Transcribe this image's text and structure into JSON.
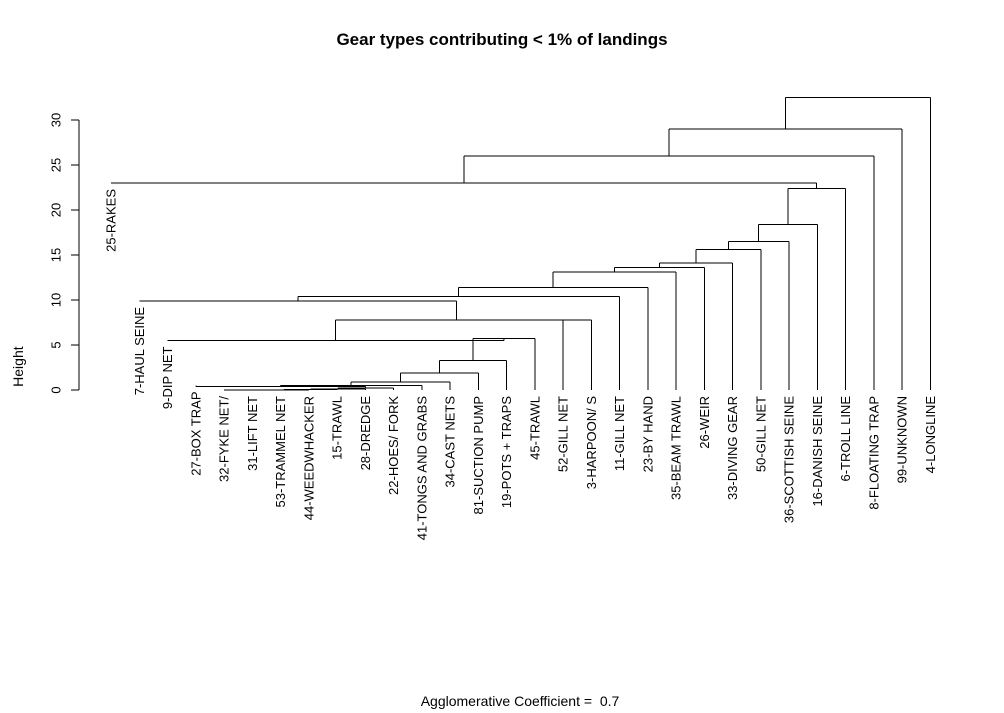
{
  "chart_data": {
    "type": "dendrogram",
    "title": "Gear types contributing < 1% of landings",
    "ylabel": "Height",
    "ylim": [
      0,
      33
    ],
    "yticks": [
      0,
      5,
      10,
      15,
      20,
      25,
      30
    ],
    "footer_label": "Agglomerative Coefficient =",
    "footer_value": "0.7",
    "leaves": [
      {
        "label": "25-RAKES",
        "height": 23.0
      },
      {
        "label": "7-HAUL SEINE",
        "height": 9.9
      },
      {
        "label": "9-DIP NET",
        "height": 5.5
      },
      {
        "label": "27-BOX TRAP",
        "height": 0.5
      },
      {
        "label": "32-FYKE NET/",
        "height": 0.0
      },
      {
        "label": "31-LIFT NET",
        "height": 0.0
      },
      {
        "label": "53-TRAMMEL NET",
        "height": 0.0
      },
      {
        "label": "44-WEEDWHACKER",
        "height": 0.0
      },
      {
        "label": "15-TRAWL",
        "height": 0.0
      },
      {
        "label": "28-DREDGE",
        "height": 0.0
      },
      {
        "label": "22-HOES/ FORK",
        "height": 0.0
      },
      {
        "label": "41-TONGS AND GRABS",
        "height": 0.0
      },
      {
        "label": "34-CAST NETS",
        "height": 0.0
      },
      {
        "label": "81-SUCTION PUMP",
        "height": 0.0
      },
      {
        "label": "19-POTS + TRAPS",
        "height": 0.0
      },
      {
        "label": "45-TRAWL",
        "height": 0.0
      },
      {
        "label": "52-GILL NET",
        "height": 0.0
      },
      {
        "label": "3-HARPOON/ S",
        "height": 0.0
      },
      {
        "label": "11-GILL NET",
        "height": 0.0
      },
      {
        "label": "23-BY HAND",
        "height": 0.0
      },
      {
        "label": "35-BEAM TRAWL",
        "height": 0.0
      },
      {
        "label": "26-WEIR",
        "height": 0.0
      },
      {
        "label": "33-DIVING GEAR",
        "height": 0.0
      },
      {
        "label": "50-GILL NET",
        "height": 0.0
      },
      {
        "label": "36-SCOTTISH SEINE",
        "height": 0.0
      },
      {
        "label": "16-DANISH SEINE",
        "height": 0.0
      },
      {
        "label": "6-TROLL LINE",
        "height": 0.0
      },
      {
        "label": "8-FLOATING TRAP",
        "height": 0.0
      },
      {
        "label": "99-UNKNOWN",
        "height": 0.0
      },
      {
        "label": "4-LONGLINE",
        "height": 0.0
      }
    ],
    "merges": [
      {
        "a": "L5",
        "b": "L6",
        "height": 0.0
      },
      {
        "a": "M1",
        "b": "L7",
        "height": 0.0
      },
      {
        "a": "M2",
        "b": "L8",
        "height": 0.0
      },
      {
        "a": "M3",
        "b": "L9",
        "height": 0.05
      },
      {
        "a": "M4",
        "b": "L10",
        "height": 0.1
      },
      {
        "a": "M5",
        "b": "L11",
        "height": 0.2
      },
      {
        "a": "L4",
        "b": "M6",
        "height": 0.4
      },
      {
        "a": "M7",
        "b": "L12",
        "height": 0.5
      },
      {
        "a": "M8",
        "b": "L13",
        "height": 0.9
      },
      {
        "a": "M9",
        "b": "L14",
        "height": 1.9
      },
      {
        "a": "M10",
        "b": "L15",
        "height": 3.3
      },
      {
        "a": "M11",
        "b": "L16",
        "height": 5.7
      },
      {
        "a": "L3",
        "b": "M12",
        "height": 5.5
      },
      {
        "a": "L17",
        "b": "L18",
        "height": 7.8
      },
      {
        "a": "M13",
        "b": "M14",
        "height": 7.8
      },
      {
        "a": "L2",
        "b": "M15",
        "height": 9.9
      },
      {
        "a": "M16",
        "b": "L19",
        "height": 10.4
      },
      {
        "a": "M17",
        "b": "L20",
        "height": 11.4
      },
      {
        "a": "M18",
        "b": "L21",
        "height": 13.1
      },
      {
        "a": "M19",
        "b": "L22",
        "height": 13.6
      },
      {
        "a": "M20",
        "b": "L23",
        "height": 14.1
      },
      {
        "a": "M21",
        "b": "L24",
        "height": 15.6
      },
      {
        "a": "M22",
        "b": "L25",
        "height": 16.5
      },
      {
        "a": "M23",
        "b": "L26",
        "height": 18.4
      },
      {
        "a": "M24",
        "b": "L27",
        "height": 22.4
      },
      {
        "a": "L1",
        "b": "M25",
        "height": 23.0
      },
      {
        "a": "M26",
        "b": "L28",
        "height": 26.0
      },
      {
        "a": "M27",
        "b": "L29",
        "height": 29.0
      },
      {
        "a": "M28",
        "b": "L30",
        "height": 32.5
      }
    ]
  }
}
